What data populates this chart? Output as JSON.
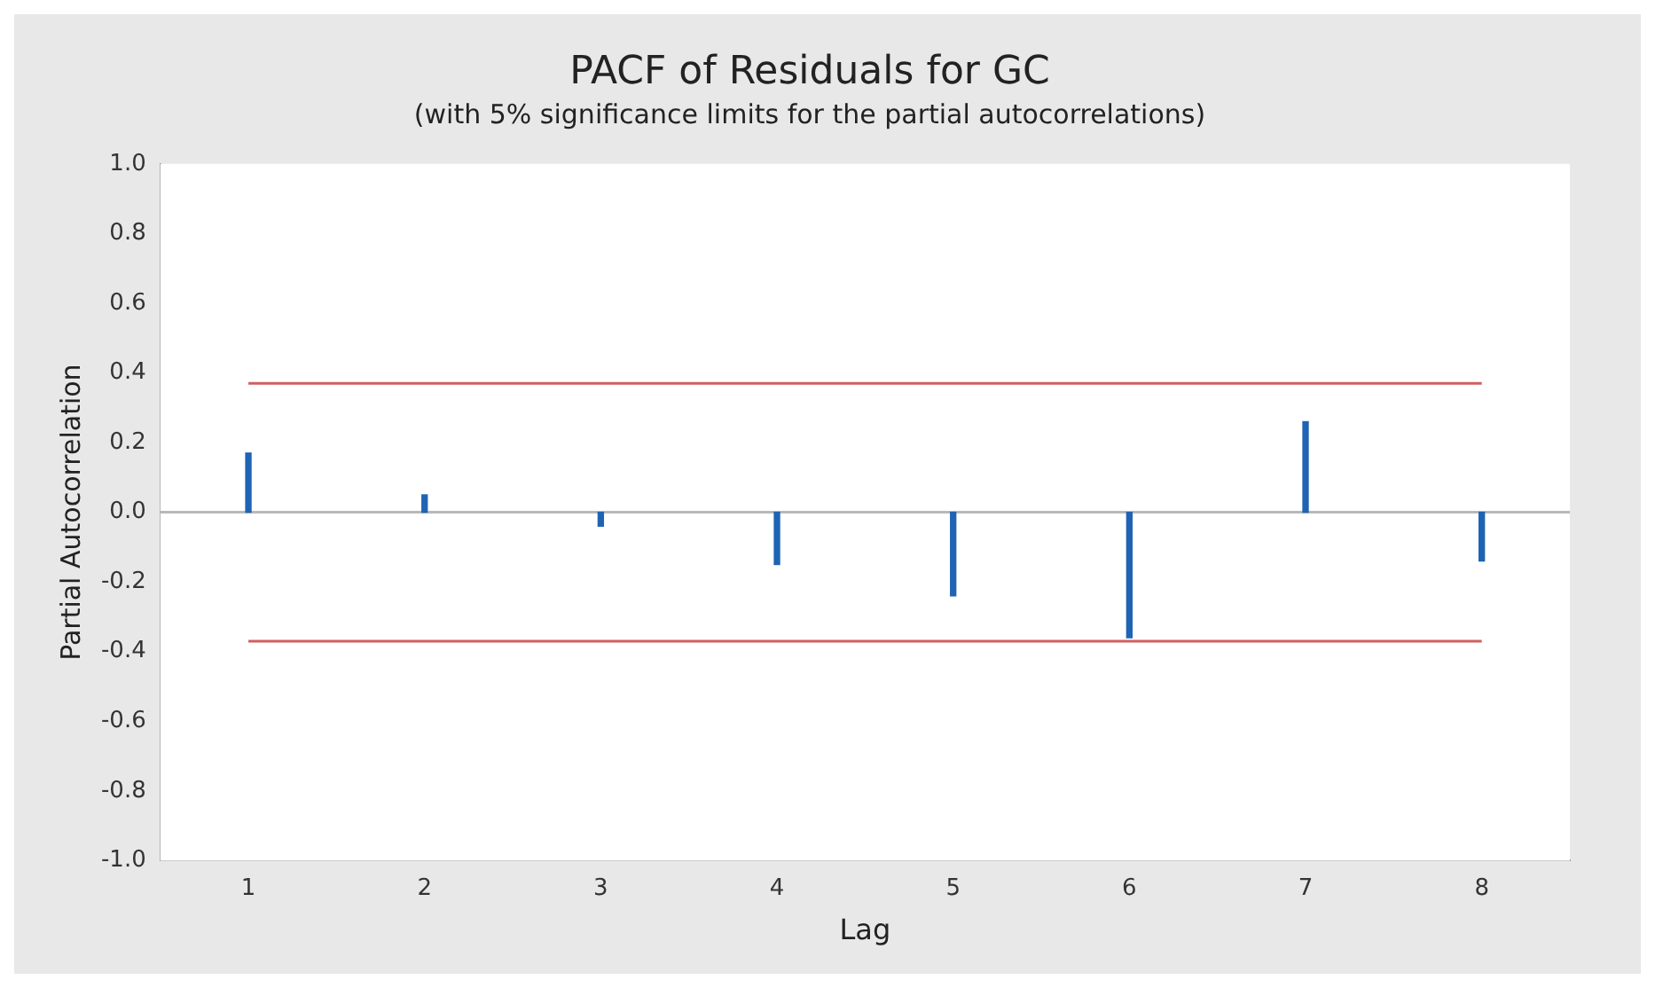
{
  "chart_data": {
    "type": "bar",
    "title": "PACF of Residuals for GC",
    "subtitle": "(with 5% significance limits for the partial autocorrelations)",
    "xlabel": "Lag",
    "ylabel": "Partial Autocorrelation",
    "categories": [
      "1",
      "2",
      "3",
      "4",
      "5",
      "6",
      "7",
      "8"
    ],
    "values": [
      0.17,
      0.05,
      -0.04,
      -0.15,
      -0.24,
      -0.36,
      0.26,
      -0.14
    ],
    "color": "#1f64b4",
    "ylim": [
      -1.0,
      1.0
    ],
    "yticks": [
      {
        "value": -1,
        "label": "-1.0"
      },
      {
        "value": -0.8,
        "label": "-0.8"
      },
      {
        "value": -0.6,
        "label": "-0.6"
      },
      {
        "value": -0.4,
        "label": "-0.4"
      },
      {
        "value": -0.2,
        "label": "-0.2"
      },
      {
        "value": 0,
        "label": "0.0"
      },
      {
        "value": 0.2,
        "label": "0.2"
      },
      {
        "value": 0.4,
        "label": "0.4"
      },
      {
        "value": 0.6,
        "label": "0.6"
      },
      {
        "value": 0.8,
        "label": "0.8"
      },
      {
        "value": 1,
        "label": "1.0"
      }
    ],
    "ref_lines": [
      {
        "axis": "y",
        "value": 0.37,
        "color": "#d06060"
      },
      {
        "axis": "y",
        "value": -0.37,
        "color": "#d06060"
      },
      {
        "axis": "y",
        "value": 0,
        "color": "#b8b8b8"
      }
    ],
    "grid": false,
    "legend": false
  }
}
